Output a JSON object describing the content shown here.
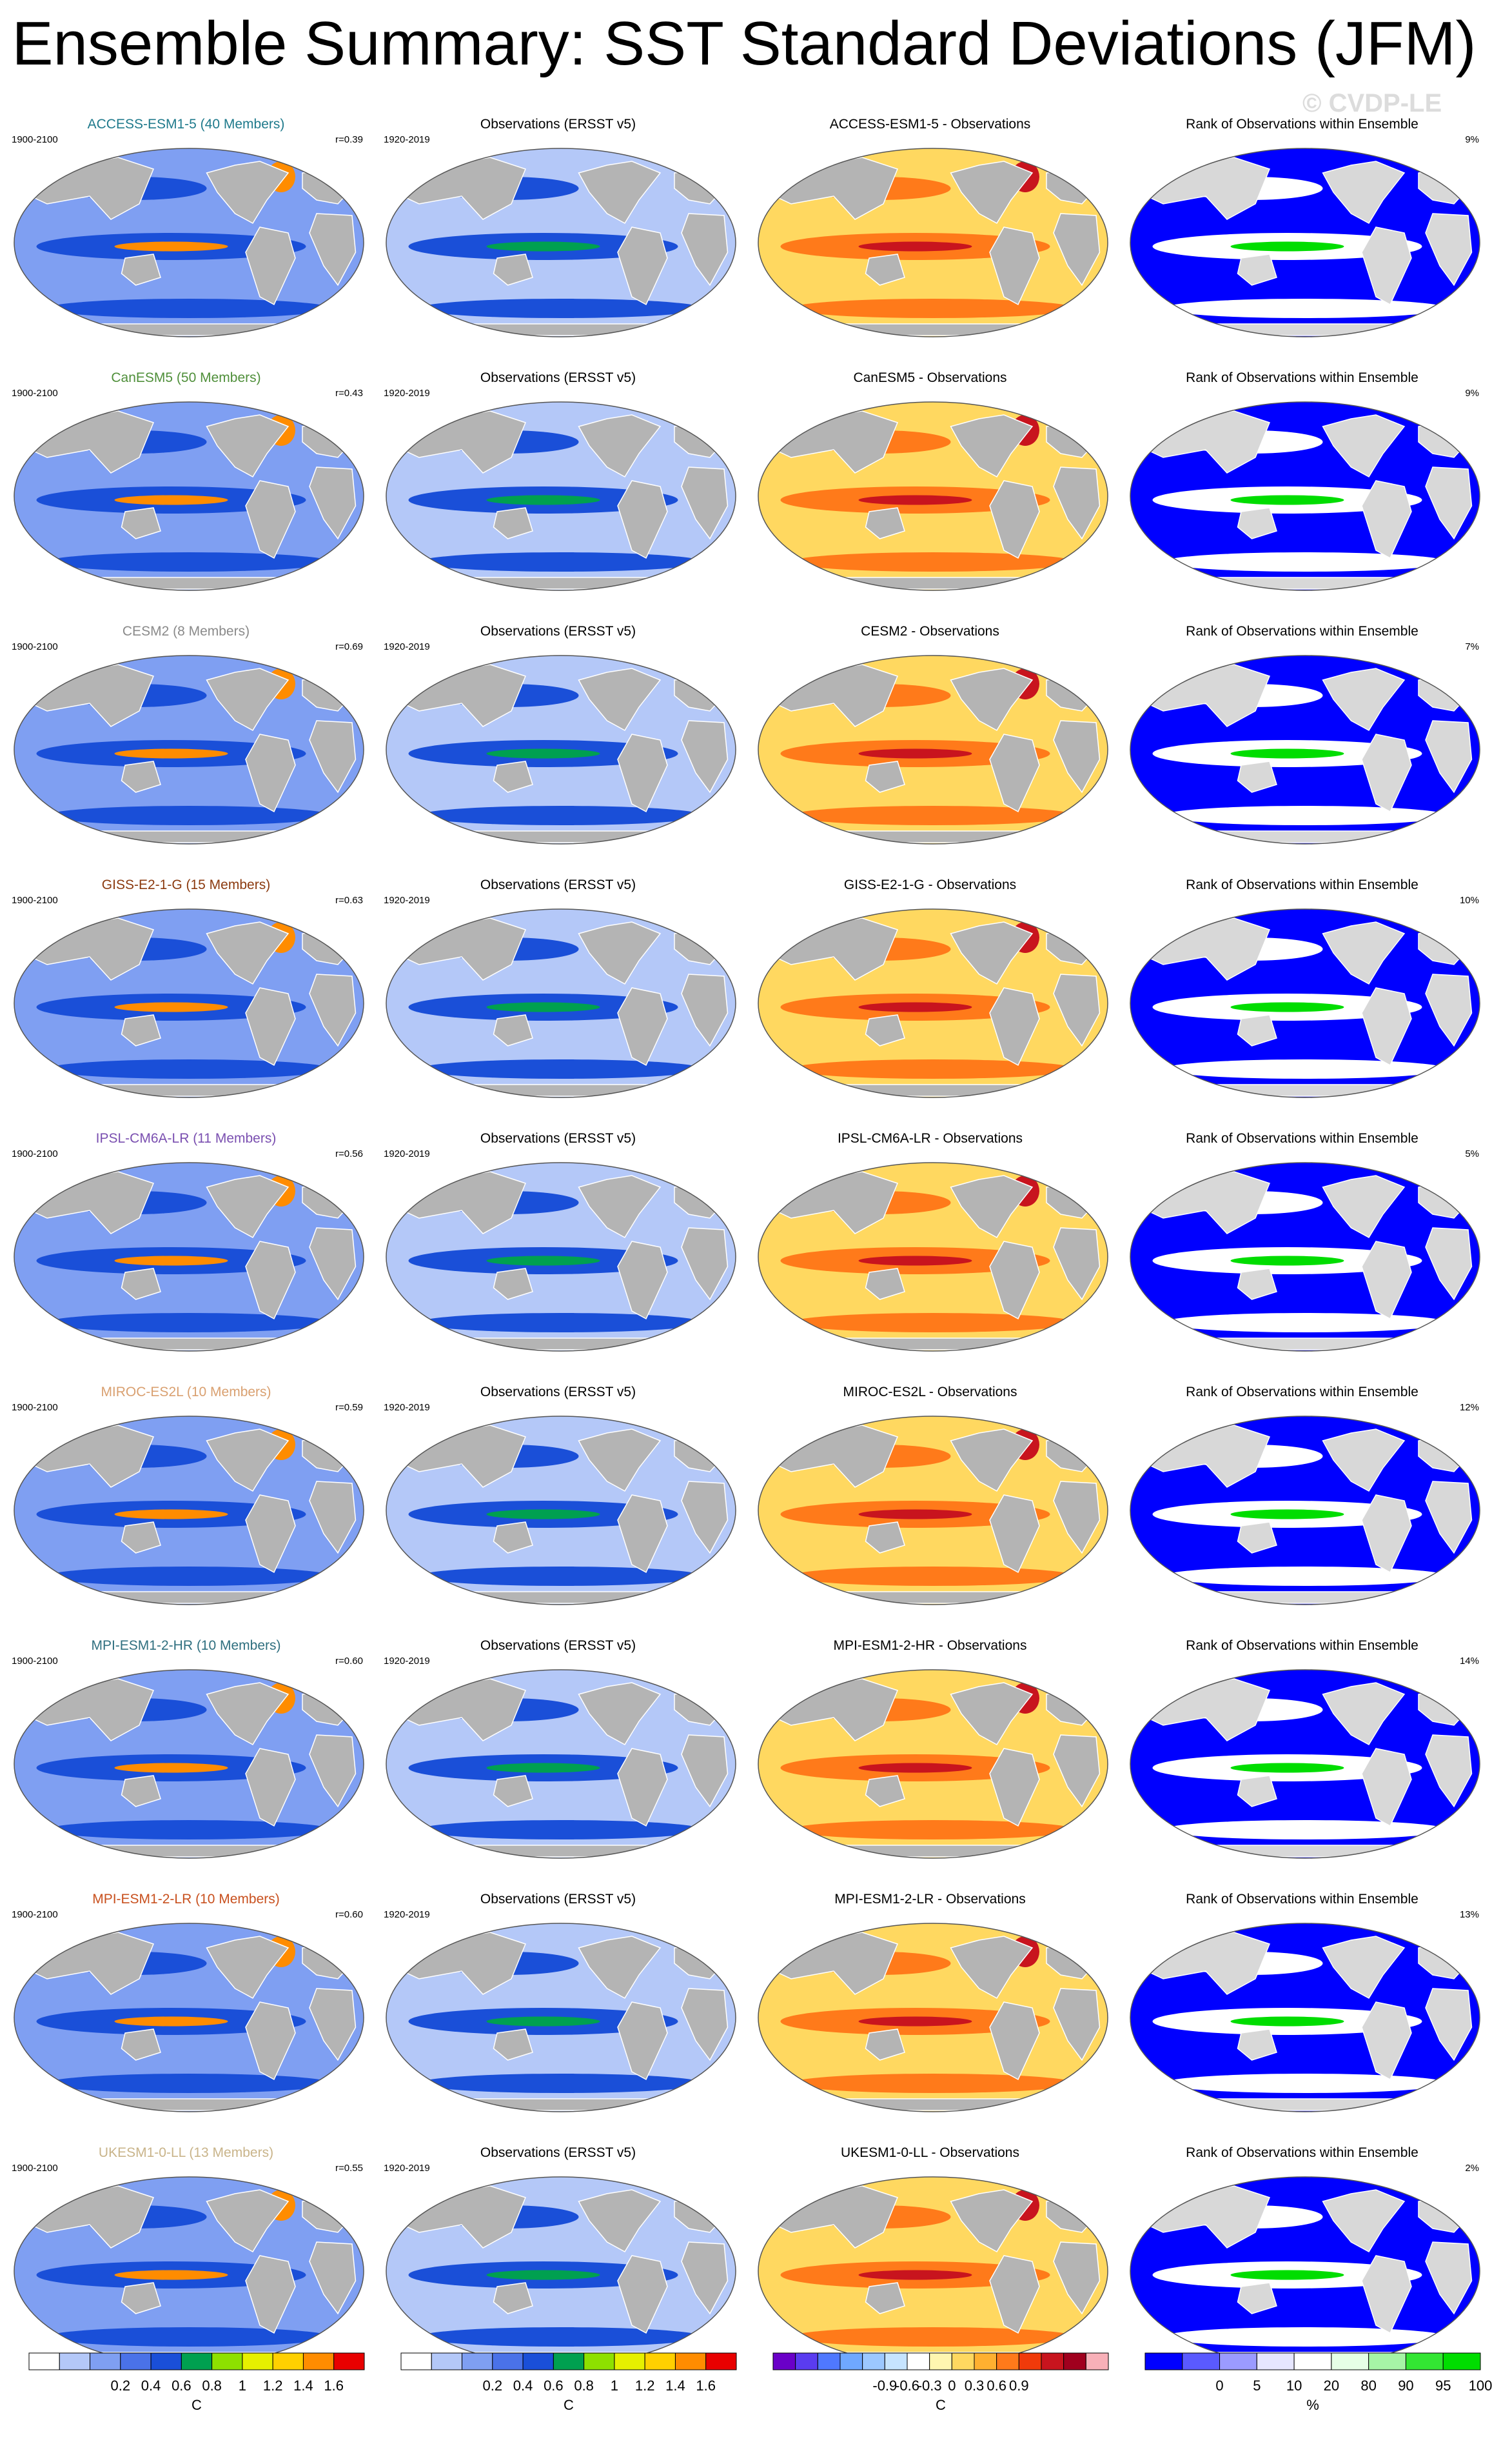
{
  "title": "Ensemble Summary: SST Standard Deviations (JFM)",
  "watermark": "© CVDP-LE",
  "chart_data": {
    "type": "heatmap",
    "panel_columns": [
      {
        "kind": "model"
      },
      {
        "kind": "obs",
        "title": "Observations (ERSST v5)",
        "period": "1920-2019"
      },
      {
        "kind": "diff",
        "title_suffix": " - Observations"
      },
      {
        "kind": "rank",
        "title": "Rank of Observations within Ensemble"
      }
    ],
    "rows": [
      {
        "model": "ACCESS-ESM1-5",
        "title": "ACCESS-ESM1-5 (40 Members)",
        "title_color": "#1f7a8c",
        "period": "1900-2100",
        "r": "r=0.39",
        "rank_pct": "9%"
      },
      {
        "model": "CanESM5",
        "title": "CanESM5 (50 Members)",
        "title_color": "#4f8f3a",
        "period": "1900-2100",
        "r": "r=0.43",
        "rank_pct": "9%"
      },
      {
        "model": "CESM2",
        "title": "CESM2 (8 Members)",
        "title_color": "#8a8a8a",
        "period": "1900-2100",
        "r": "r=0.69",
        "rank_pct": "7%"
      },
      {
        "model": "GISS-E2-1-G",
        "title": "GISS-E2-1-G (15 Members)",
        "title_color": "#8b3a0f",
        "period": "1900-2100",
        "r": "r=0.63",
        "rank_pct": "10%"
      },
      {
        "model": "IPSL-CM6A-LR",
        "title": "IPSL-CM6A-LR (11 Members)",
        "title_color": "#7a4fb0",
        "period": "1900-2100",
        "r": "r=0.56",
        "rank_pct": "5%"
      },
      {
        "model": "MIROC-ES2L",
        "title": "MIROC-ES2L (10 Members)",
        "title_color": "#d9a070",
        "period": "1900-2100",
        "r": "r=0.59",
        "rank_pct": "12%"
      },
      {
        "model": "MPI-ESM1-2-HR",
        "title": "MPI-ESM1-2-HR (10 Members)",
        "title_color": "#2f6f7f",
        "period": "1900-2100",
        "r": "r=0.60",
        "rank_pct": "14%"
      },
      {
        "model": "MPI-ESM1-2-LR",
        "title": "MPI-ESM1-2-LR (10 Members)",
        "title_color": "#c8501e",
        "period": "1900-2100",
        "r": "r=0.60",
        "rank_pct": "13%"
      },
      {
        "model": "UKESM1-0-LL",
        "title": "UKESM1-0-LL (13 Members)",
        "title_color": "#c9b48a",
        "period": "1900-2100",
        "r": "r=0.55",
        "rank_pct": "2%"
      }
    ],
    "colorbars": [
      {
        "name": "stddev_model",
        "unit": "C",
        "ticks": [
          "0.2",
          "0.4",
          "0.6",
          "0.8",
          "1",
          "1.2",
          "1.4",
          "1.6"
        ],
        "colors": [
          "#ffffff",
          "#b4c8f8",
          "#7f9ff2",
          "#4a72e8",
          "#1a4fd8",
          "#00a050",
          "#8ee000",
          "#e6f000",
          "#ffd000",
          "#ff8c00",
          "#e80000"
        ]
      },
      {
        "name": "stddev_obs",
        "unit": "C",
        "ticks": [
          "0.2",
          "0.4",
          "0.6",
          "0.8",
          "1",
          "1.2",
          "1.4",
          "1.6"
        ],
        "colors": [
          "#ffffff",
          "#b4c8f8",
          "#7f9ff2",
          "#4a72e8",
          "#1a4fd8",
          "#00a050",
          "#8ee000",
          "#e6f000",
          "#ffd000",
          "#ff8c00",
          "#e80000"
        ]
      },
      {
        "name": "difference",
        "unit": "C",
        "ticks": [
          "-0.9",
          "-0.6",
          "-0.3",
          "0",
          "0.3",
          "0.6",
          "0.9"
        ],
        "colors": [
          "#6a00c8",
          "#5a3cf0",
          "#4f78ff",
          "#6fa8ff",
          "#9cc8ff",
          "#c6e4ff",
          "#ffffff",
          "#fff6b0",
          "#ffd860",
          "#ffb030",
          "#ff7a1a",
          "#f03a0a",
          "#c8141e",
          "#a0001e",
          "#f8b0b8"
        ]
      },
      {
        "name": "rank",
        "unit": "%",
        "ticks": [
          "0",
          "5",
          "10",
          "20",
          "80",
          "90",
          "95",
          "100"
        ],
        "colors": [
          "#0000ff",
          "#5a5aff",
          "#9b9bff",
          "#e6e6ff",
          "#ffffff",
          "#e6ffe6",
          "#a6f5a6",
          "#33e633",
          "#00dd00"
        ]
      }
    ]
  }
}
